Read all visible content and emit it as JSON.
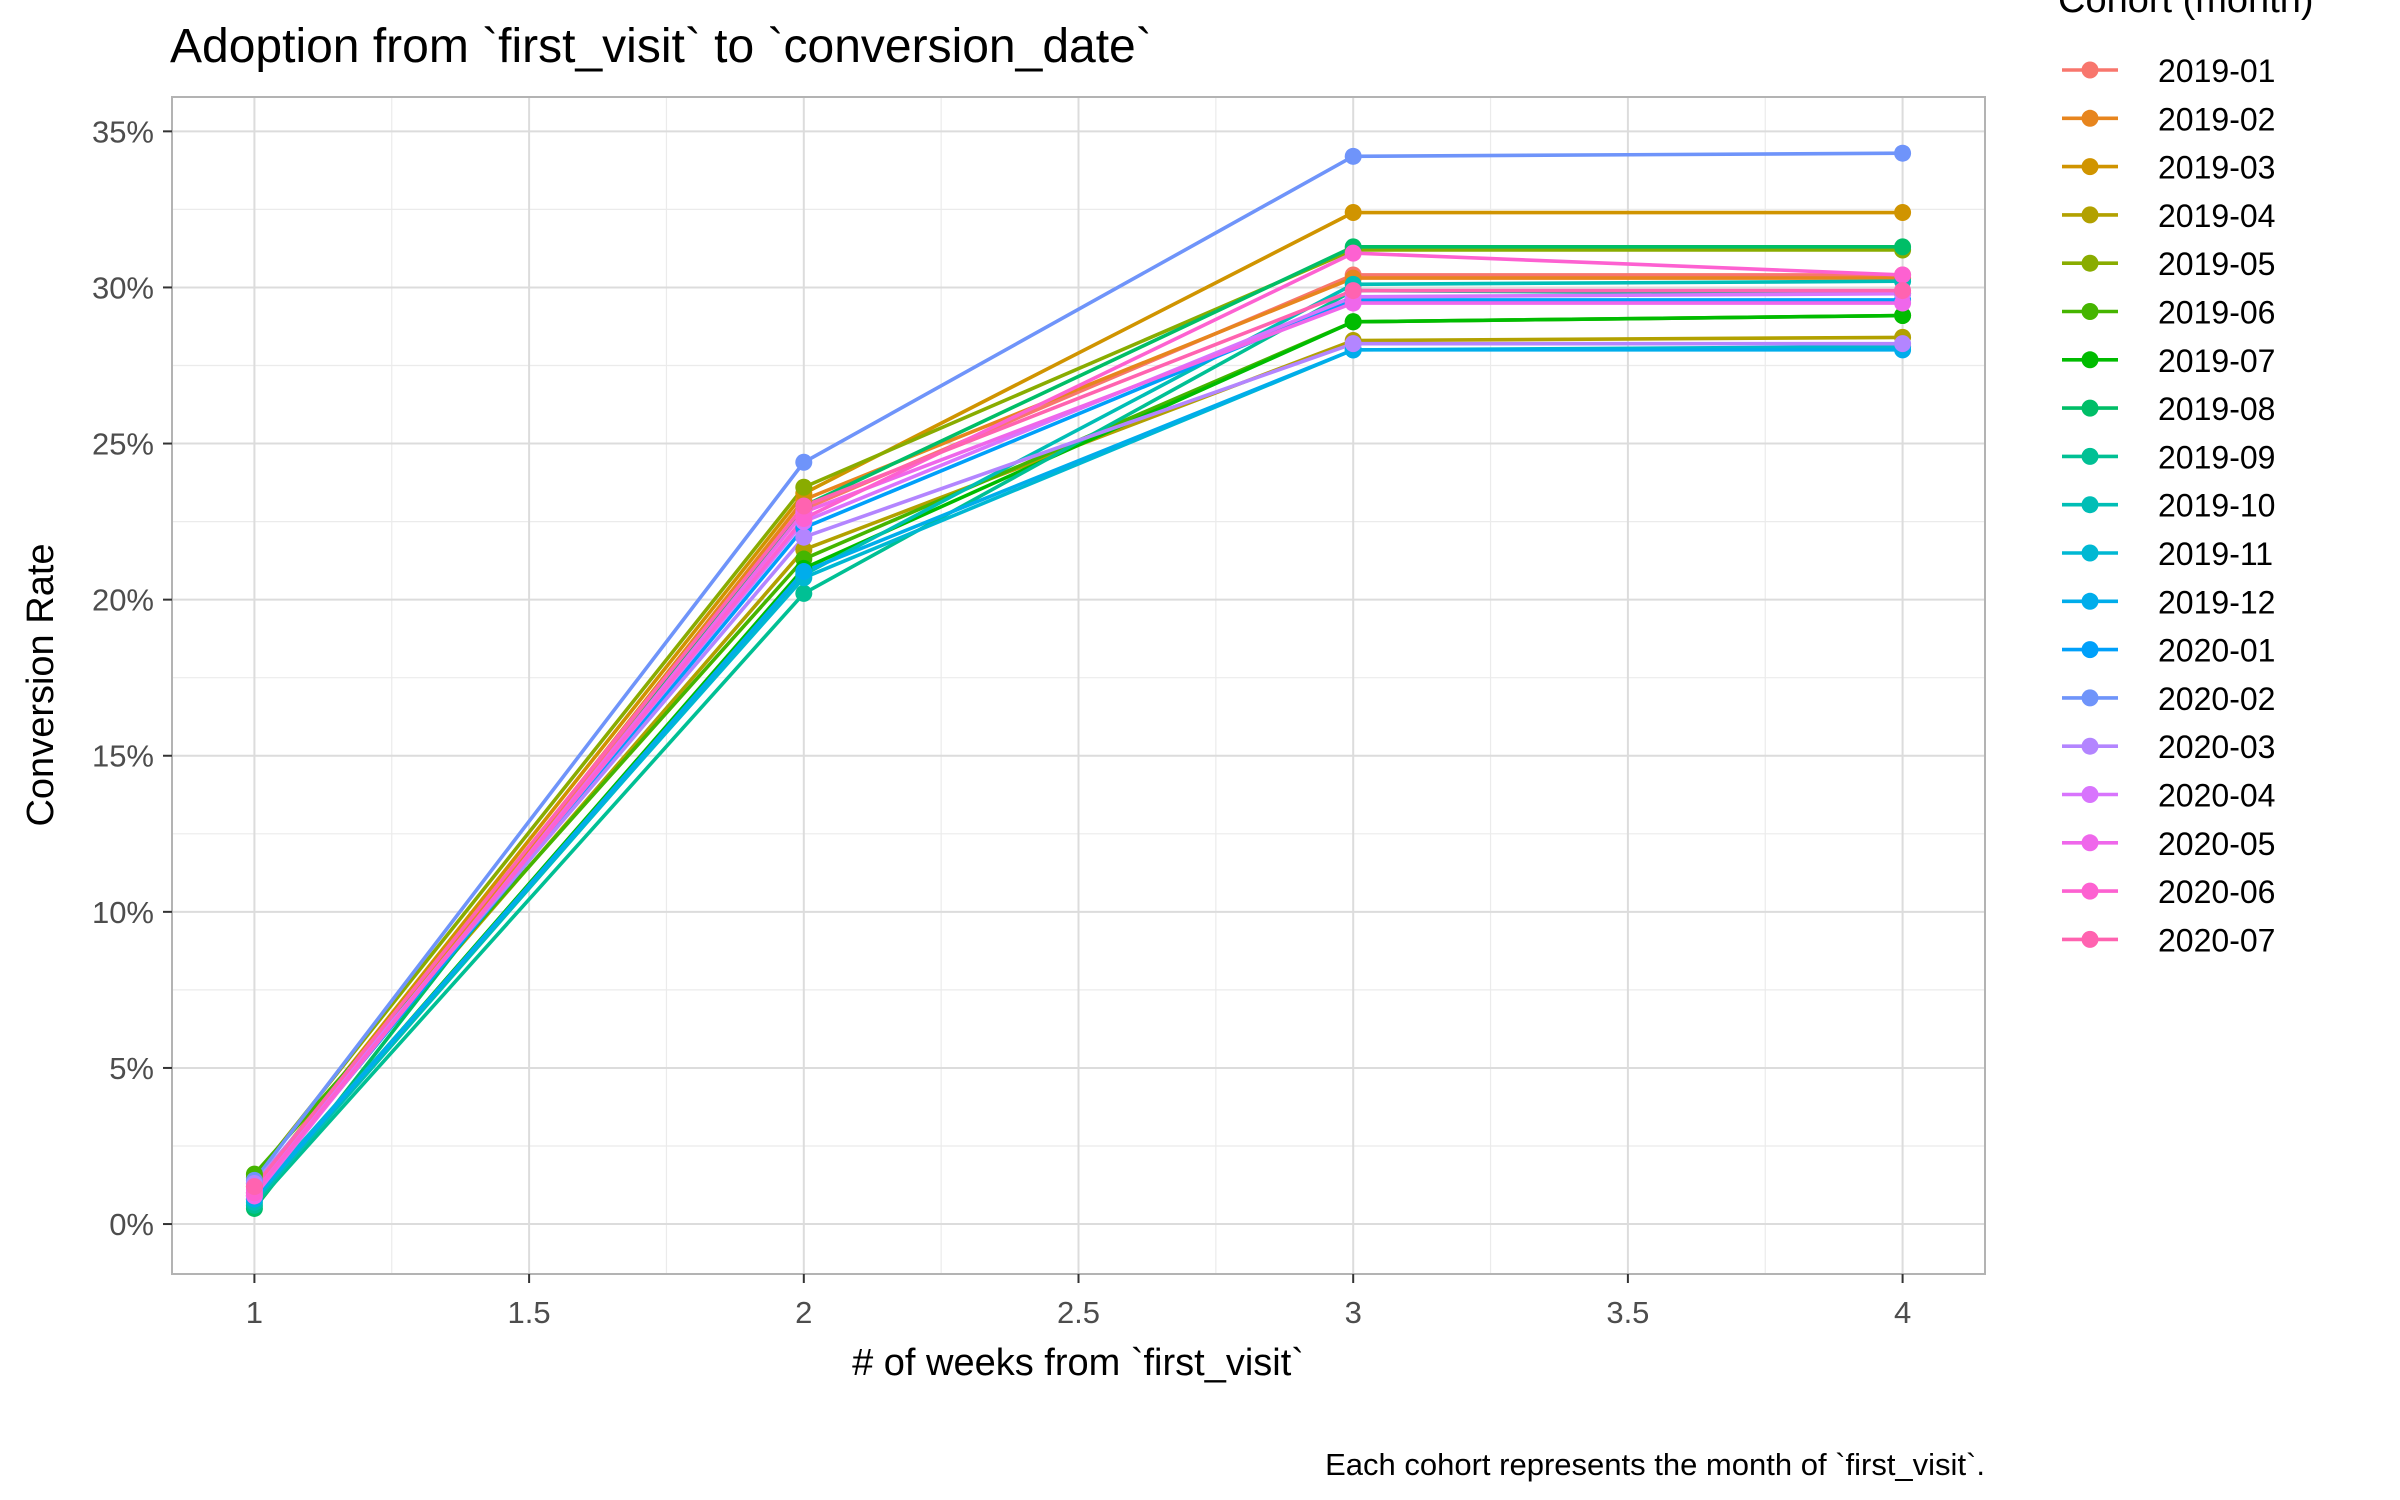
{
  "chart_data": {
    "type": "line",
    "title": "Adoption from `first_visit` to `conversion_date`",
    "xlabel": "# of weeks from `first_visit`",
    "ylabel": "Conversion Rate",
    "caption": "Each cohort represents the month of `first_visit`.",
    "legend_title": "Cohort (month)",
    "legend_position": "right",
    "grid": true,
    "x": [
      1,
      2,
      3,
      4
    ],
    "xlim": [
      0.85,
      4.15
    ],
    "ylim": [
      -1.6,
      36.1
    ],
    "x_ticks": [
      1,
      1.5,
      2,
      2.5,
      3,
      3.5,
      4
    ],
    "x_tick_labels": [
      "1",
      "1.5",
      "2",
      "2.5",
      "3",
      "3.5",
      "4"
    ],
    "y_ticks": [
      0,
      5,
      10,
      15,
      20,
      25,
      30,
      35
    ],
    "y_tick_labels": [
      "0%",
      "5%",
      "10%",
      "15%",
      "20%",
      "25%",
      "30%",
      "35%"
    ],
    "series": [
      {
        "name": "2019-01",
        "color": "#F8766D",
        "values": [
          1.0,
          22.9,
          30.4,
          30.4
        ]
      },
      {
        "name": "2019-02",
        "color": "#E7851E",
        "values": [
          0.9,
          23.2,
          30.3,
          30.3
        ]
      },
      {
        "name": "2019-03",
        "color": "#D09400",
        "values": [
          1.2,
          23.4,
          32.4,
          32.4
        ]
      },
      {
        "name": "2019-04",
        "color": "#B2A100",
        "values": [
          1.3,
          21.6,
          28.3,
          28.4
        ]
      },
      {
        "name": "2019-05",
        "color": "#89AC00",
        "values": [
          1.5,
          23.6,
          31.2,
          31.2
        ]
      },
      {
        "name": "2019-06",
        "color": "#45B500",
        "values": [
          1.6,
          21.3,
          28.9,
          29.1
        ]
      },
      {
        "name": "2019-07",
        "color": "#00BC00",
        "values": [
          0.8,
          21.0,
          28.9,
          29.1
        ]
      },
      {
        "name": "2019-08",
        "color": "#00BE67",
        "values": [
          0.5,
          23.0,
          31.3,
          31.3
        ]
      },
      {
        "name": "2019-09",
        "color": "#00C094",
        "values": [
          0.6,
          20.2,
          29.9,
          29.8
        ]
      },
      {
        "name": "2019-10",
        "color": "#00BEB6",
        "values": [
          0.7,
          20.8,
          30.1,
          30.2
        ]
      },
      {
        "name": "2019-11",
        "color": "#00B8D3",
        "values": [
          0.9,
          20.7,
          28.0,
          28.1
        ]
      },
      {
        "name": "2019-12",
        "color": "#00ADEB",
        "values": [
          0.8,
          20.9,
          28.0,
          28.0
        ]
      },
      {
        "name": "2020-01",
        "color": "#00A0FA",
        "values": [
          1.0,
          22.3,
          29.6,
          29.6
        ]
      },
      {
        "name": "2020-02",
        "color": "#6F94FA",
        "values": [
          1.4,
          24.4,
          34.2,
          34.3
        ]
      },
      {
        "name": "2020-03",
        "color": "#B385FF",
        "values": [
          1.3,
          22.0,
          28.2,
          28.2
        ]
      },
      {
        "name": "2020-04",
        "color": "#D874FD",
        "values": [
          1.1,
          22.5,
          29.7,
          29.8
        ]
      },
      {
        "name": "2020-05",
        "color": "#EF67EB",
        "values": [
          0.9,
          22.8,
          29.5,
          29.5
        ]
      },
      {
        "name": "2020-06",
        "color": "#FD61D1",
        "values": [
          1.0,
          22.6,
          31.1,
          30.4
        ]
      },
      {
        "name": "2020-07",
        "color": "#FF63B0",
        "values": [
          1.2,
          23.0,
          29.9,
          29.9
        ]
      }
    ]
  }
}
